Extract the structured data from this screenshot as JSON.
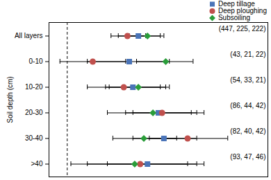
{
  "chart_data": {
    "type": "scatter",
    "y_label": "Soil depth (cm)",
    "categories": [
      "All layers",
      "0-10",
      "10-20",
      "20-30",
      "30-40",
      ">40"
    ],
    "xlim": [
      -10,
      110
    ],
    "tick_labels": "y",
    "legend": "top-right",
    "reference_x": 0,
    "series": [
      {
        "name": "Deep tillage",
        "color": "#4a74b8",
        "marker": "square",
        "values": [
          39,
          34,
          36,
          50,
          53,
          44
        ],
        "error_low": [
          28,
          11,
          21,
          32,
          36,
          22
        ],
        "error_high": [
          51,
          56,
          54,
          71,
          71,
          75
        ]
      },
      {
        "name": "Deep ploughing",
        "color": "#c0504d",
        "marker": "circle",
        "values": [
          33,
          14,
          31,
          52,
          66,
          40
        ],
        "error_low": [
          24,
          -4,
          11,
          36,
          45,
          11
        ],
        "error_high": [
          43,
          32,
          51,
          75,
          88,
          71
        ]
      },
      {
        "name": "Subsoiling",
        "color": "#2a9d3a",
        "marker": "diamond",
        "values": [
          44,
          54,
          39,
          47,
          42,
          37
        ],
        "error_low": [
          34,
          38,
          23,
          22,
          25,
          2
        ],
        "error_high": [
          53,
          69,
          56,
          68,
          60,
          66
        ]
      }
    ],
    "annotations": [
      "(447, 225, 222)",
      "(43, 21, 22)",
      "(54, 33, 21)",
      "(86, 44, 42)",
      "(82, 40, 42)",
      "(93, 47, 46)"
    ]
  }
}
